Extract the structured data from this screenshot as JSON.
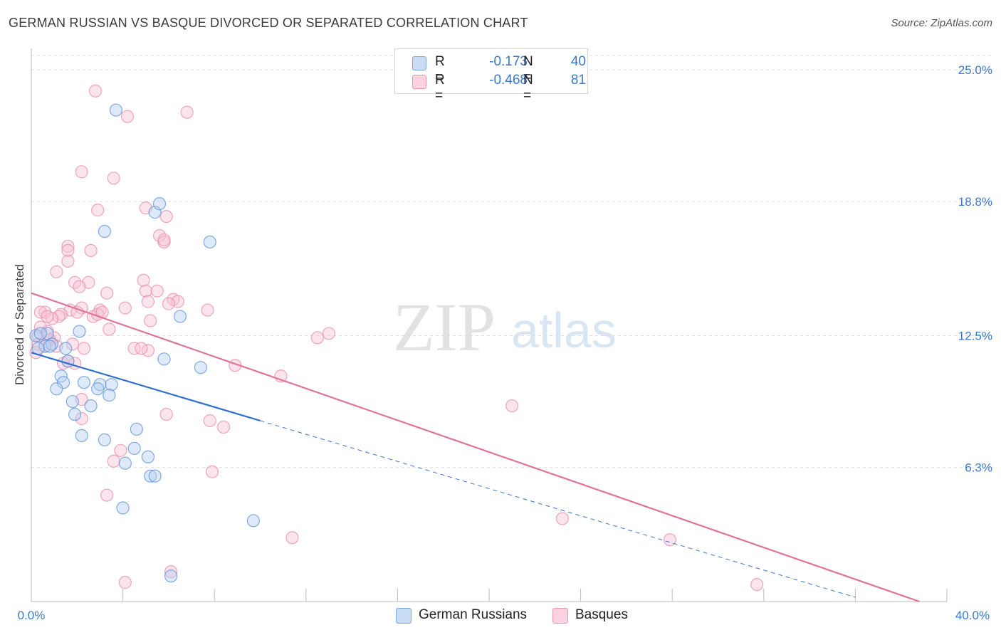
{
  "header": {
    "title": "GERMAN RUSSIAN VS BASQUE DIVORCED OR SEPARATED CORRELATION CHART",
    "source": "Source: ZipAtlas.com"
  },
  "watermark": {
    "zip": "ZIP",
    "atlas": "atlas"
  },
  "legend": {
    "rows": [
      {
        "r_label": "R =",
        "r_value": "-0.173",
        "n_label": "N =",
        "n_value": "40",
        "color": "#a8c8f0"
      },
      {
        "r_label": "R =",
        "r_value": "-0.468",
        "n_label": "N =",
        "n_value": "81",
        "color": "#f6b8cc"
      }
    ]
  },
  "bottom_legend": [
    {
      "label": "German Russians",
      "color": "#a8c8f0"
    },
    {
      "label": "Basques",
      "color": "#f6b8cc"
    }
  ],
  "chart_data": {
    "type": "scatter",
    "title": "GERMAN RUSSIAN VS BASQUE DIVORCED OR SEPARATED CORRELATION CHART",
    "xlabel": "",
    "ylabel": "Divorced or Separated",
    "xlim": [
      0,
      40
    ],
    "ylim": [
      0,
      26
    ],
    "x_tick_labels": [
      "0.0%",
      "40.0%"
    ],
    "y_ticks": [
      6.3,
      12.5,
      18.8,
      25.0
    ],
    "y_tick_labels": [
      "6.3%",
      "12.5%",
      "18.8%",
      "25.0%"
    ],
    "grid": true,
    "colors": {
      "blue": "#3a78c9",
      "pink": "#e0739a",
      "blue_fill": "#a8c8f0",
      "pink_fill": "#f6b8cc"
    },
    "series": [
      {
        "name": "German Russians",
        "color": "#3a78c9",
        "fill": "#a8c8f0",
        "points": [
          [
            3.7,
            23.1
          ],
          [
            5.4,
            18.3
          ],
          [
            5.6,
            18.7
          ],
          [
            3.2,
            17.4
          ],
          [
            7.8,
            16.9
          ],
          [
            6.5,
            13.4
          ],
          [
            2.1,
            12.7
          ],
          [
            0.7,
            12.6
          ],
          [
            0.2,
            12.5
          ],
          [
            0.6,
            12.0
          ],
          [
            0.3,
            11.9
          ],
          [
            1.5,
            11.9
          ],
          [
            0.9,
            12.1
          ],
          [
            1.6,
            11.3
          ],
          [
            5.8,
            11.4
          ],
          [
            7.4,
            11.0
          ],
          [
            1.3,
            10.6
          ],
          [
            2.3,
            10.3
          ],
          [
            3.0,
            10.2
          ],
          [
            3.5,
            10.2
          ],
          [
            1.4,
            10.3
          ],
          [
            1.1,
            10.0
          ],
          [
            2.9,
            10.0
          ],
          [
            3.4,
            9.7
          ],
          [
            1.8,
            9.4
          ],
          [
            2.6,
            9.2
          ],
          [
            1.9,
            8.8
          ],
          [
            4.6,
            8.1
          ],
          [
            2.2,
            7.8
          ],
          [
            3.2,
            7.6
          ],
          [
            4.5,
            7.2
          ],
          [
            5.1,
            6.8
          ],
          [
            4.1,
            6.5
          ],
          [
            5.2,
            5.9
          ],
          [
            5.4,
            5.9
          ],
          [
            4.0,
            4.4
          ],
          [
            9.7,
            3.8
          ],
          [
            6.1,
            1.2
          ],
          [
            0.4,
            12.6
          ],
          [
            0.8,
            12.0
          ]
        ]
      },
      {
        "name": "Basques",
        "color": "#e0739a",
        "fill": "#f6b8cc",
        "points": [
          [
            2.8,
            24.0
          ],
          [
            4.2,
            22.8
          ],
          [
            6.8,
            23.0
          ],
          [
            2.2,
            20.2
          ],
          [
            3.6,
            19.9
          ],
          [
            5.9,
            18.1
          ],
          [
            2.9,
            18.4
          ],
          [
            5.0,
            18.5
          ],
          [
            5.6,
            17.2
          ],
          [
            5.8,
            16.9
          ],
          [
            5.8,
            17.0
          ],
          [
            1.6,
            16.7
          ],
          [
            1.6,
            16.5
          ],
          [
            2.6,
            16.5
          ],
          [
            1.6,
            16.0
          ],
          [
            1.1,
            15.5
          ],
          [
            1.9,
            15.0
          ],
          [
            2.5,
            15.0
          ],
          [
            4.9,
            15.1
          ],
          [
            2.1,
            14.8
          ],
          [
            5.0,
            14.6
          ],
          [
            5.5,
            14.6
          ],
          [
            3.3,
            14.5
          ],
          [
            6.2,
            14.2
          ],
          [
            6.4,
            14.1
          ],
          [
            5.1,
            14.1
          ],
          [
            4.1,
            13.8
          ],
          [
            2.2,
            13.8
          ],
          [
            3.0,
            13.7
          ],
          [
            7.7,
            13.7
          ],
          [
            0.6,
            13.6
          ],
          [
            1.7,
            13.7
          ],
          [
            0.4,
            13.6
          ],
          [
            1.3,
            13.5
          ],
          [
            1.2,
            13.4
          ],
          [
            0.9,
            13.3
          ],
          [
            0.7,
            13.4
          ],
          [
            2.7,
            13.4
          ],
          [
            2.9,
            13.5
          ],
          [
            5.2,
            13.2
          ],
          [
            3.4,
            12.8
          ],
          [
            0.7,
            12.7
          ],
          [
            1.0,
            12.4
          ],
          [
            0.3,
            12.5
          ],
          [
            0.3,
            12.1
          ],
          [
            12.5,
            12.4
          ],
          [
            13.0,
            12.6
          ],
          [
            0.8,
            12.3
          ],
          [
            1.8,
            12.1
          ],
          [
            0.6,
            12.0
          ],
          [
            4.5,
            11.9
          ],
          [
            5.1,
            11.8
          ],
          [
            2.3,
            11.9
          ],
          [
            0.2,
            11.7
          ],
          [
            1.4,
            11.2
          ],
          [
            1.9,
            11.2
          ],
          [
            1.6,
            11.3
          ],
          [
            8.9,
            11.1
          ],
          [
            10.9,
            10.6
          ],
          [
            2.2,
            9.5
          ],
          [
            21.0,
            9.2
          ],
          [
            5.9,
            8.8
          ],
          [
            2.2,
            8.6
          ],
          [
            7.8,
            8.5
          ],
          [
            8.4,
            8.2
          ],
          [
            3.9,
            7.1
          ],
          [
            3.6,
            6.6
          ],
          [
            7.9,
            6.1
          ],
          [
            3.3,
            5.0
          ],
          [
            23.2,
            3.9
          ],
          [
            11.4,
            3.0
          ],
          [
            27.9,
            2.9
          ],
          [
            6.1,
            1.4
          ],
          [
            4.1,
            0.9
          ],
          [
            31.7,
            0.8
          ],
          [
            0.4,
            12.9
          ],
          [
            1.1,
            12.0
          ],
          [
            2.0,
            13.6
          ],
          [
            3.1,
            13.6
          ],
          [
            6.0,
            14.0
          ],
          [
            4.8,
            11.9
          ]
        ]
      }
    ],
    "trend_lines": [
      {
        "series": "German Russians",
        "start": [
          0,
          11.7
        ],
        "end": [
          10.0,
          8.5
        ],
        "dashed_to": [
          36.0,
          0.2
        ]
      },
      {
        "series": "Basques",
        "start": [
          0,
          14.5
        ],
        "end": [
          38.8,
          0.0
        ]
      }
    ]
  }
}
